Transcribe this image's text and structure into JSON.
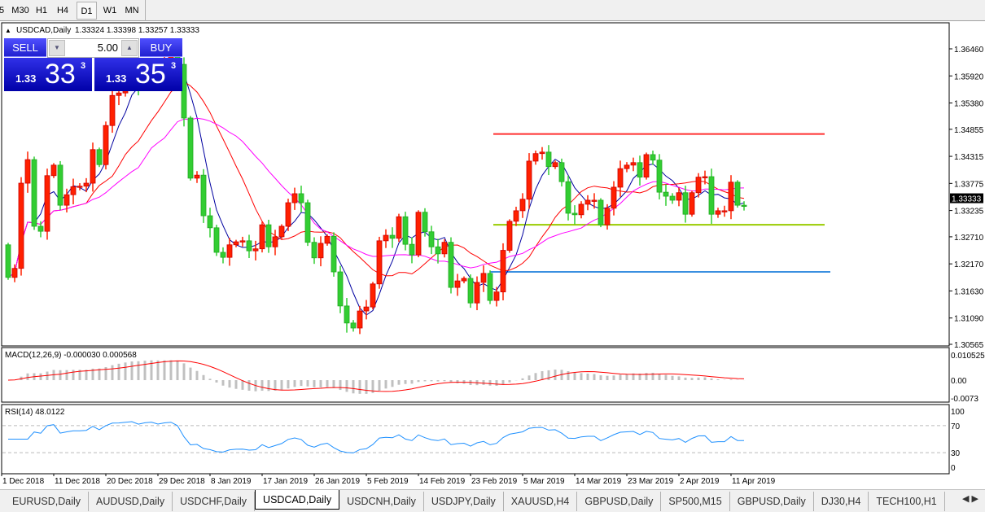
{
  "toolbar": {
    "timeframes": [
      "5",
      "M30",
      "H1",
      "H4",
      "D1",
      "W1",
      "MN"
    ],
    "active": "D1"
  },
  "chart_header": {
    "symbol": "USDCAD,Daily",
    "ohlc_text": "1.33324 1.33398 1.33257 1.33333"
  },
  "trade_panel": {
    "sell_label": "SELL",
    "buy_label": "BUY",
    "lot": "5.00",
    "sell": {
      "prefix": "1.33",
      "big": "33",
      "sup": "3"
    },
    "buy": {
      "prefix": "1.33",
      "big": "35",
      "sup": "3"
    }
  },
  "colors": {
    "bull": "#ff2000",
    "bear": "#32cd32",
    "ma_fast": "#0000a0",
    "ma_mid": "#ff0000",
    "ma_slow": "#ff00ff",
    "resistance": "#ff3030",
    "support": "#99cc00",
    "support2": "#3a8fe0",
    "rsi": "#1e90ff",
    "macd_hist": "#c0c0c0",
    "macd_signal": "#ff0000"
  },
  "chart_data": {
    "type": "candlestick",
    "symbol": "USDCAD",
    "timeframe": "Daily",
    "up_color": "red",
    "down_color": "green",
    "close": [
      1.319,
      1.3208,
      1.3378,
      1.3425,
      1.3292,
      1.3282,
      1.3393,
      1.3414,
      1.3334,
      1.3355,
      1.3371,
      1.3372,
      1.3378,
      1.3445,
      1.3415,
      1.3493,
      1.3553,
      1.3558,
      1.3575,
      1.359,
      1.357,
      1.36,
      1.3615,
      1.36,
      1.3625,
      1.364,
      1.3615,
      1.3508,
      1.3388,
      1.3394,
      1.3313,
      1.3289,
      1.324,
      1.323,
      1.3255,
      1.3261,
      1.3263,
      1.3243,
      1.3247,
      1.3295,
      1.3251,
      1.3271,
      1.3292,
      1.3339,
      1.3357,
      1.3339,
      1.326,
      1.3229,
      1.3258,
      1.3272,
      1.3201,
      1.3133,
      1.3099,
      1.3089,
      1.3123,
      1.3131,
      1.3177,
      1.3263,
      1.3274,
      1.3268,
      1.3311,
      1.3256,
      1.3235,
      1.332,
      1.3281,
      1.3251,
      1.3237,
      1.326,
      1.317,
      1.3183,
      1.3188,
      1.3139,
      1.318,
      1.3198,
      1.3144,
      1.3161,
      1.3244,
      1.3302,
      1.3323,
      1.3346,
      1.3422,
      1.3437,
      1.344,
      1.3411,
      1.3419,
      1.3381,
      1.3318,
      1.3315,
      1.3336,
      1.3344,
      1.3344,
      1.3295,
      1.3328,
      1.337,
      1.3407,
      1.3414,
      1.3419,
      1.339,
      1.3435,
      1.3424,
      1.336,
      1.3352,
      1.3344,
      1.3359,
      1.3316,
      1.3359,
      1.339,
      1.3391,
      1.3316,
      1.3323,
      1.3323,
      1.338,
      1.3334,
      1.3333
    ],
    "first_open": 1.3255,
    "price_axis": {
      "ticks": [
        "1.36460",
        "1.35920",
        "1.35380",
        "1.34855",
        "1.34315",
        "1.33775",
        "1.33235",
        "1.32710",
        "1.32170",
        "1.31630",
        "1.31090",
        "1.30565"
      ],
      "ylim": [
        1.30565,
        1.3646
      ],
      "current": "1.33333"
    },
    "time_axis": [
      "1 Dec 2018",
      "11 Dec 2018",
      "20 Dec 2018",
      "29 Dec 2018",
      "8 Jan 2019",
      "17 Jan 2019",
      "26 Jan 2019",
      "5 Feb 2019",
      "14 Feb 2019",
      "23 Feb 2019",
      "5 Mar 2019",
      "14 Mar 2019",
      "23 Mar 2019",
      "2 Apr 2019",
      "11 Apr 2019"
    ],
    "horizontal_lines": [
      {
        "price": 1.3476,
        "color": "#ff3030"
      },
      {
        "price": 1.3295,
        "color": "#99cc00"
      },
      {
        "price": 1.3201,
        "color": "#3a8fe0"
      }
    ],
    "moving_averages": [
      5,
      13,
      21
    ],
    "macd": {
      "label": "MACD(12,26,9) -0.000030 0.000568",
      "ticks": [
        "0.010525",
        "0.00",
        "-0.0073"
      ]
    },
    "rsi": {
      "label": "RSI(14) 48.0122",
      "ticks": [
        "100",
        "70",
        "30",
        "0"
      ],
      "levels": [
        70,
        30
      ]
    }
  },
  "tabs": [
    "EURUSD,Daily",
    "AUDUSD,Daily",
    "USDCHF,Daily",
    "USDCAD,Daily",
    "USDCNH,Daily",
    "USDJPY,Daily",
    "XAUUSD,H4",
    "GBPUSD,Daily",
    "SP500,M15",
    "GBPUSD,Daily",
    "DJ30,H4",
    "TECH100,H1"
  ],
  "active_tab": "USDCAD,Daily"
}
